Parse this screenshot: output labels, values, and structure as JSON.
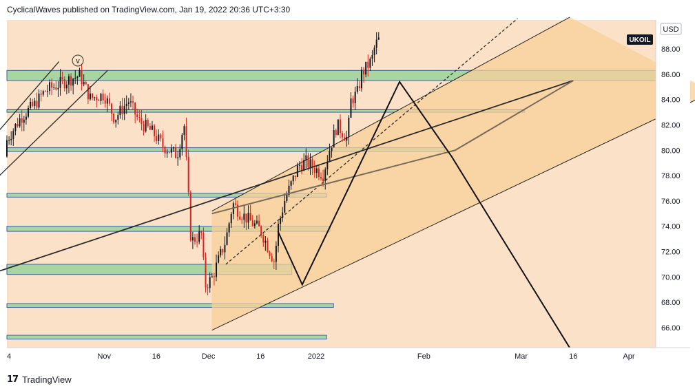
{
  "header": {
    "publisher_line": "CyclicalWaves published on TradingView.com, Jan 19, 2022 20:36 UTC+3:30"
  },
  "footer": {
    "brand": "TradingView",
    "logo_glyph": "17"
  },
  "colors": {
    "background": "#fae1c8",
    "zone_fill": "#a8d5a0",
    "zone_stroke": "#3a5fa8",
    "channel_fill": "#f8cf9a",
    "up_candle": "#131722",
    "down_candle": "#e0201e",
    "purple_line": "#7a3a9a",
    "ticker_bg": "#131722"
  },
  "chart_data": {
    "type": "candlestick",
    "symbol": "UKOIL",
    "currency": "USD",
    "y_ticks": [
      66,
      68,
      70,
      72,
      74,
      76,
      78,
      80,
      82,
      84,
      86,
      88
    ],
    "y_tick_labels": [
      "66.00",
      "68.00",
      "70.00",
      "72.00",
      "74.00",
      "76.00",
      "78.00",
      "80.00",
      "82.00",
      "84.00",
      "86.00",
      "88.00"
    ],
    "ylim": [
      64.4,
      90.5
    ],
    "x_labels": [
      "4",
      "Nov",
      "16",
      "Dec",
      "16",
      "2022",
      "Feb",
      "Mar",
      "16",
      "Apr"
    ],
    "x_label_dates": [
      "2021-10-04",
      "2021-11-01",
      "2021-11-16",
      "2021-12-01",
      "2021-12-16",
      "2022-01-01",
      "2022-02-01",
      "2022-03-01",
      "2022-03-16",
      "2022-04-01"
    ],
    "wave_label": "v",
    "support_resistance_zones": [
      {
        "low": 85.5,
        "high": 86.3,
        "end": "2022-04-25"
      },
      {
        "low": 83.0,
        "high": 83.2,
        "end": "2022-03-02"
      },
      {
        "low": 79.9,
        "high": 80.2,
        "end": "2022-02-07"
      },
      {
        "low": 76.3,
        "high": 76.6,
        "end": "2022-01-04"
      },
      {
        "low": 73.6,
        "high": 74.0,
        "end": "2022-01-05"
      },
      {
        "low": 70.2,
        "high": 71.0,
        "end": "2021-12-25"
      },
      {
        "low": 67.6,
        "high": 67.9,
        "end": "2022-01-06"
      },
      {
        "low": 65.1,
        "high": 65.4,
        "end": "2022-01-04"
      }
    ],
    "candles": [
      {
        "date": "2021-10-04",
        "open": 79.5,
        "high": 81.2,
        "low": 78.8,
        "close": 80.8
      },
      {
        "date": "2021-10-08",
        "open": 80.8,
        "high": 83.5,
        "low": 80.0,
        "close": 82.6
      },
      {
        "date": "2021-10-12",
        "open": 82.6,
        "high": 84.2,
        "low": 81.5,
        "close": 83.6
      },
      {
        "date": "2021-10-15",
        "open": 83.6,
        "high": 85.3,
        "low": 82.9,
        "close": 84.7
      },
      {
        "date": "2021-10-19",
        "open": 84.7,
        "high": 86.0,
        "low": 84.0,
        "close": 85.2
      },
      {
        "date": "2021-10-22",
        "open": 85.2,
        "high": 86.4,
        "low": 84.3,
        "close": 85.6
      },
      {
        "date": "2021-10-25",
        "open": 85.6,
        "high": 86.6,
        "low": 84.9,
        "close": 85.9
      },
      {
        "date": "2021-10-28",
        "open": 85.9,
        "high": 86.3,
        "low": 83.5,
        "close": 84.1
      },
      {
        "date": "2021-11-01",
        "open": 84.1,
        "high": 85.0,
        "low": 82.8,
        "close": 84.4
      },
      {
        "date": "2021-11-04",
        "open": 84.4,
        "high": 84.9,
        "low": 81.6,
        "close": 82.5
      },
      {
        "date": "2021-11-08",
        "open": 82.5,
        "high": 84.5,
        "low": 82.1,
        "close": 83.9
      },
      {
        "date": "2021-11-11",
        "open": 83.9,
        "high": 84.4,
        "low": 81.8,
        "close": 82.3
      },
      {
        "date": "2021-11-15",
        "open": 82.3,
        "high": 83.2,
        "low": 80.9,
        "close": 81.4
      },
      {
        "date": "2021-11-18",
        "open": 81.4,
        "high": 82.3,
        "low": 79.1,
        "close": 80.3
      },
      {
        "date": "2021-11-22",
        "open": 80.3,
        "high": 82.0,
        "low": 78.7,
        "close": 79.6
      },
      {
        "date": "2021-11-24",
        "open": 79.6,
        "high": 82.8,
        "low": 78.9,
        "close": 82.1
      },
      {
        "date": "2021-11-26",
        "open": 82.1,
        "high": 82.5,
        "low": 72.3,
        "close": 72.8
      },
      {
        "date": "2021-11-29",
        "open": 72.8,
        "high": 74.2,
        "low": 71.2,
        "close": 73.4
      },
      {
        "date": "2021-11-30",
        "open": 73.4,
        "high": 74.0,
        "low": 68.9,
        "close": 69.3
      },
      {
        "date": "2021-12-02",
        "open": 69.3,
        "high": 70.6,
        "low": 67.6,
        "close": 69.9
      },
      {
        "date": "2021-12-06",
        "open": 69.9,
        "high": 73.4,
        "low": 69.4,
        "close": 72.9
      },
      {
        "date": "2021-12-08",
        "open": 72.9,
        "high": 76.2,
        "low": 72.4,
        "close": 75.8
      },
      {
        "date": "2021-12-10",
        "open": 75.8,
        "high": 76.5,
        "low": 74.3,
        "close": 75.1
      },
      {
        "date": "2021-12-13",
        "open": 75.1,
        "high": 76.3,
        "low": 73.6,
        "close": 74.4
      },
      {
        "date": "2021-12-16",
        "open": 74.4,
        "high": 75.9,
        "low": 73.2,
        "close": 73.7
      },
      {
        "date": "2021-12-20",
        "open": 73.7,
        "high": 74.3,
        "low": 70.4,
        "close": 71.2
      },
      {
        "date": "2021-12-21",
        "open": 71.2,
        "high": 74.2,
        "low": 70.9,
        "close": 73.9
      },
      {
        "date": "2021-12-23",
        "open": 73.9,
        "high": 76.3,
        "low": 73.6,
        "close": 76.1
      },
      {
        "date": "2021-12-27",
        "open": 76.1,
        "high": 79.2,
        "low": 75.7,
        "close": 78.8
      },
      {
        "date": "2021-12-29",
        "open": 78.8,
        "high": 79.6,
        "low": 78.0,
        "close": 79.1
      },
      {
        "date": "2022-01-03",
        "open": 79.1,
        "high": 79.8,
        "low": 77.4,
        "close": 78.1
      },
      {
        "date": "2022-01-05",
        "open": 78.1,
        "high": 80.6,
        "low": 77.8,
        "close": 80.2
      },
      {
        "date": "2022-01-07",
        "open": 80.2,
        "high": 82.5,
        "low": 79.7,
        "close": 82.0
      },
      {
        "date": "2022-01-10",
        "open": 82.0,
        "high": 83.0,
        "low": 80.1,
        "close": 80.9
      },
      {
        "date": "2022-01-11",
        "open": 80.9,
        "high": 84.2,
        "low": 80.6,
        "close": 83.9
      },
      {
        "date": "2022-01-13",
        "open": 83.9,
        "high": 85.4,
        "low": 83.4,
        "close": 84.6
      },
      {
        "date": "2022-01-14",
        "open": 84.6,
        "high": 86.3,
        "low": 84.1,
        "close": 86.0
      },
      {
        "date": "2022-01-17",
        "open": 86.0,
        "high": 87.5,
        "low": 85.6,
        "close": 87.1
      },
      {
        "date": "2022-01-18",
        "open": 87.1,
        "high": 88.6,
        "low": 86.7,
        "close": 88.3
      },
      {
        "date": "2022-01-19",
        "open": 88.3,
        "high": 89.2,
        "low": 87.6,
        "close": 88.7
      }
    ],
    "channel": {
      "lower_start": {
        "date": "2021-12-02",
        "price": 65.8
      },
      "lower_end": {
        "date": "2022-04-25",
        "price": 84.6
      },
      "upper_start": {
        "date": "2021-12-02",
        "price": 75.2
      },
      "upper_end": {
        "date": "2022-03-15",
        "price": 90.5
      }
    },
    "trendlines": [
      {
        "style": "solid",
        "points": [
          {
            "date": "2021-09-30",
            "price": 70.3
          },
          {
            "date": "2022-03-16",
            "price": 85.5
          }
        ]
      },
      {
        "style": "solid",
        "points": [
          {
            "date": "2021-09-30",
            "price": 77.5
          },
          {
            "date": "2021-11-02",
            "price": 86.3
          }
        ]
      },
      {
        "style": "solid",
        "points": [
          {
            "date": "2021-09-30",
            "price": 81.0
          },
          {
            "date": "2021-10-19",
            "price": 87.0
          }
        ]
      },
      {
        "style": "dashed",
        "points": [
          {
            "date": "2021-12-06",
            "price": 71.0
          },
          {
            "date": "2022-02-28",
            "price": 90.4
          }
        ]
      },
      {
        "style": "solid",
        "points": [
          {
            "date": "2021-12-02",
            "price": 75.0
          },
          {
            "date": "2022-02-10",
            "price": 80.0
          },
          {
            "date": "2022-03-16",
            "price": 85.5
          }
        ]
      }
    ],
    "projection_path": [
      {
        "date": "2021-12-21",
        "price": 73.6
      },
      {
        "date": "2021-12-28",
        "price": 69.4
      },
      {
        "date": "2022-01-25",
        "price": 85.4
      },
      {
        "date": "2022-02-09",
        "price": 79.5
      },
      {
        "date": "2022-03-15",
        "price": 64.4
      }
    ],
    "grid": false,
    "legend": "none"
  }
}
